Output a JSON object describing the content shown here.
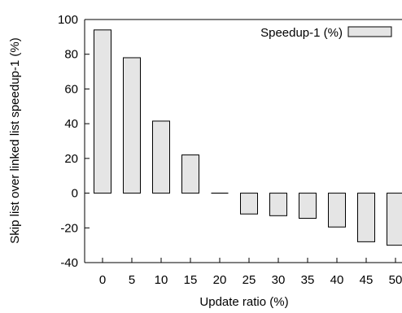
{
  "chart_data": {
    "type": "bar",
    "xlabel": "Update ratio (%)",
    "ylabel": "Skip list over linked list speedup-1 (%)",
    "categories": [
      "0",
      "5",
      "10",
      "15",
      "20",
      "25",
      "30",
      "35",
      "40",
      "45",
      "50"
    ],
    "series": [
      {
        "name": "Speedup-1 (%)",
        "values": [
          94,
          78,
          41.5,
          22,
          0,
          -12,
          -13,
          -14.5,
          -19.5,
          -28,
          -30
        ],
        "color": "#e5e5e5",
        "stroke": "#000000"
      }
    ],
    "ylim": [
      -40,
      100
    ],
    "yticks": [
      -40,
      -20,
      0,
      20,
      40,
      60,
      80,
      100
    ],
    "legend_position": "top-right",
    "grid": false
  }
}
